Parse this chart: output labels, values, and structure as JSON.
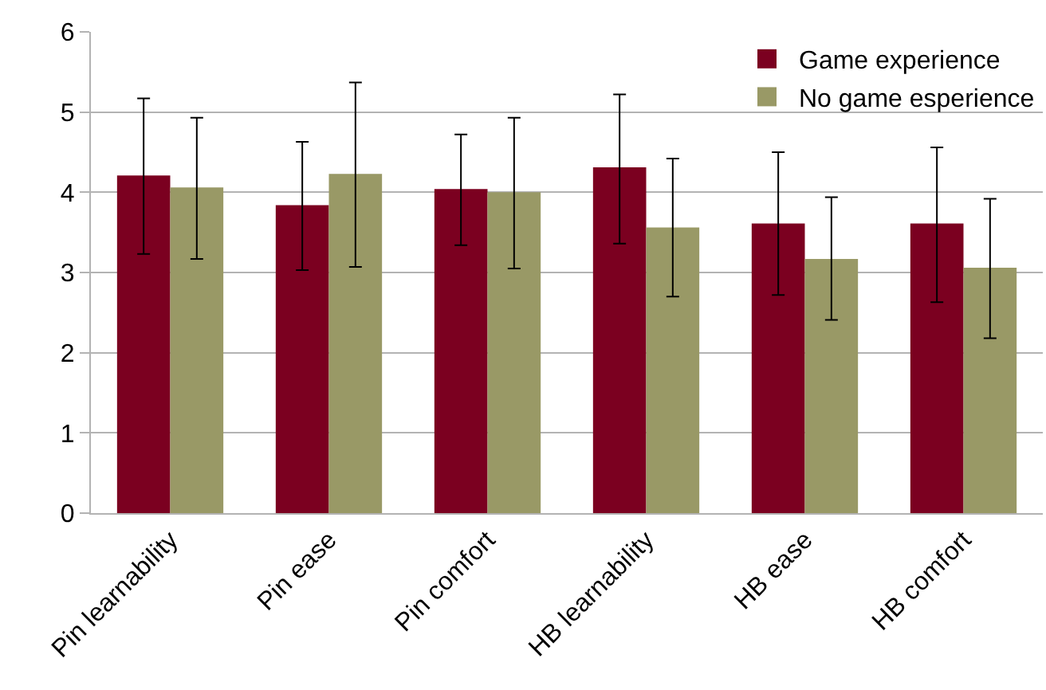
{
  "chart_data": {
    "type": "bar",
    "categories": [
      "Pin learnability",
      "Pin ease",
      "Pin comfort",
      "HB learnability",
      "HB ease",
      "HB comfort"
    ],
    "series": [
      {
        "name": "Game experience",
        "color": "#7b0020",
        "values": [
          4.21,
          3.84,
          4.04,
          4.31,
          3.61,
          3.61
        ],
        "errors": [
          [
            3.23,
            5.17
          ],
          [
            3.03,
            4.63
          ],
          [
            3.34,
            4.72
          ],
          [
            3.36,
            5.22
          ],
          [
            2.72,
            4.5
          ],
          [
            2.63,
            4.56
          ]
        ]
      },
      {
        "name": "No game esperience",
        "color": "#999966",
        "values": [
          4.06,
          4.23,
          4.0,
          3.56,
          3.17,
          3.06
        ],
        "errors": [
          [
            3.17,
            4.93
          ],
          [
            3.07,
            5.37
          ],
          [
            3.05,
            4.93
          ],
          [
            2.7,
            4.42
          ],
          [
            2.41,
            3.94
          ],
          [
            2.18,
            3.92
          ]
        ]
      }
    ],
    "ylim": [
      0,
      6
    ],
    "yticks": [
      0,
      1,
      2,
      3,
      4,
      5,
      6
    ],
    "grid": "y",
    "legend": "top right"
  }
}
